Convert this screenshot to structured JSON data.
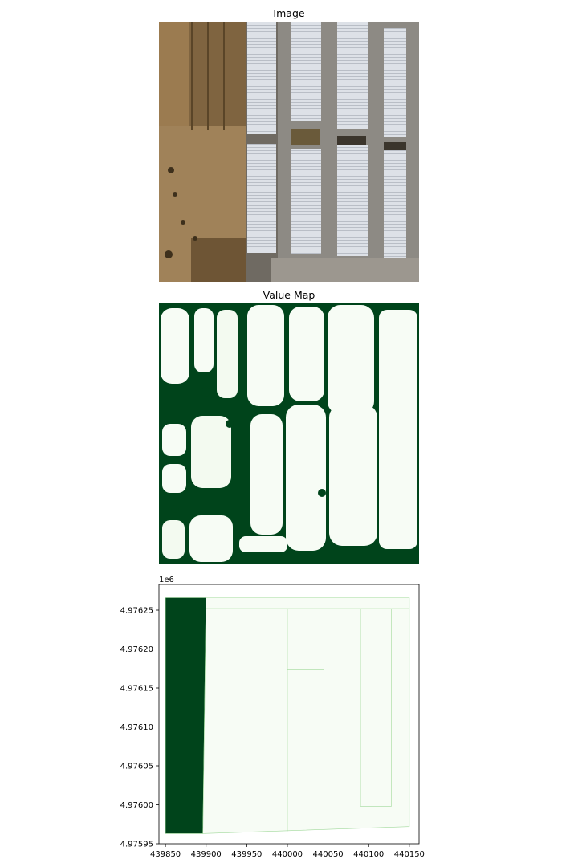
{
  "panels": {
    "image": {
      "title": "Image"
    },
    "value_map": {
      "title": "Value Map"
    }
  },
  "colors": {
    "dark_green": "#00441b",
    "light_green": "#f7fcf5",
    "mid_green": "#a1d99b",
    "soil": "#8b6f47",
    "roof": "#d9dde3",
    "pavement": "#8d8a84"
  },
  "chart_data": [
    {
      "type": "heatmap",
      "title": "Value Map",
      "xlabel": "",
      "ylabel": ""
    },
    {
      "type": "area",
      "title": "",
      "xlabel": "",
      "ylabel": "",
      "y_offset_label": "1e6",
      "xlim": [
        439842,
        440162
      ],
      "ylim": [
        4975950,
        4976283
      ],
      "x_ticks": [
        439850,
        439900,
        439950,
        440000,
        440050,
        440100,
        440150
      ],
      "x_tick_labels": [
        "439850",
        "439900",
        "439950",
        "440000",
        "440050",
        "440100",
        "440150"
      ],
      "y_ticks": [
        4975950,
        4976000,
        4976050,
        4976100,
        4976150,
        4976200,
        4976250
      ],
      "y_tick_labels": [
        "4.97595",
        "4.97600",
        "4.97605",
        "4.97610",
        "4.97615",
        "4.97620",
        "4.97625"
      ],
      "polygons": [
        {
          "class": "dark",
          "points": [
            [
              439850,
              4976266
            ],
            [
              439900,
              4976266
            ],
            [
              439896,
              4975963
            ],
            [
              439850,
              4975963
            ]
          ]
        },
        {
          "class": "light",
          "points": [
            [
              439900,
              4976266
            ],
            [
              440150,
              4976266
            ],
            [
              440150,
              4975972
            ],
            [
              439896,
              4975963
            ]
          ]
        }
      ],
      "boundaries": [
        [
          [
            439900,
            4976252
          ],
          [
            440000,
            4976252
          ]
        ],
        [
          [
            440000,
            4976252
          ],
          [
            440150,
            4976252
          ]
        ],
        [
          [
            439900,
            4976127
          ],
          [
            440000,
            4976127
          ]
        ],
        [
          [
            440000,
            4976252
          ],
          [
            440000,
            4975966
          ]
        ],
        [
          [
            440000,
            4976174
          ],
          [
            440045,
            4976174
          ]
        ],
        [
          [
            440045,
            4976252
          ],
          [
            440045,
            4975968
          ]
        ],
        [
          [
            440090,
            4976252
          ],
          [
            440090,
            4975998
          ]
        ],
        [
          [
            440090,
            4975998
          ],
          [
            440128,
            4975998
          ]
        ],
        [
          [
            440128,
            4976252
          ],
          [
            440128,
            4975998
          ]
        ]
      ]
    }
  ]
}
